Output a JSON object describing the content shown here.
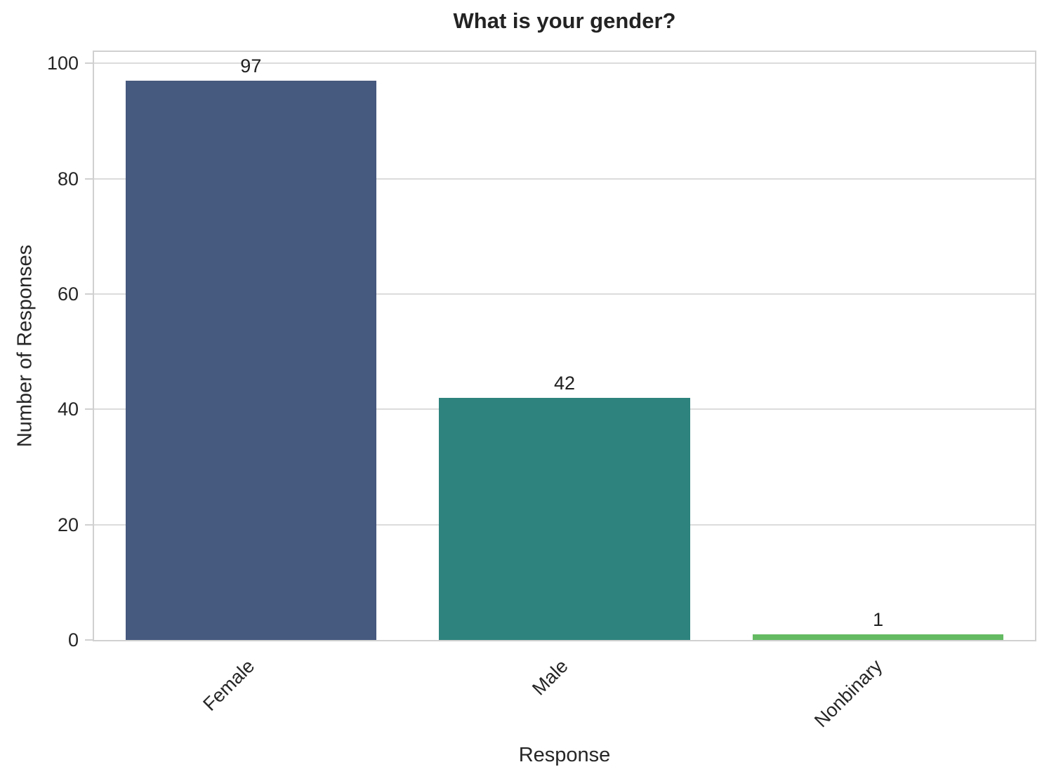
{
  "chart_data": {
    "type": "bar",
    "title": "What is your gender?",
    "xlabel": "Response",
    "ylabel": "Number of Responses",
    "categories": [
      "Female",
      "Male",
      "Nonbinary"
    ],
    "values": [
      97,
      42,
      1
    ],
    "bar_labels": [
      "97",
      "42",
      "1"
    ],
    "bar_colors": [
      "#46597e",
      "#2e837e",
      "#64ba62"
    ],
    "yticks": [
      0,
      20,
      40,
      60,
      80,
      100
    ],
    "ylim": [
      0,
      102
    ],
    "bar_width_fraction": 0.8,
    "grid": true,
    "legend_position": "none",
    "colors": {
      "grid": "#dcdcdc",
      "spine": "#d0d0d0",
      "text": "#262626",
      "background": "#ffffff"
    }
  }
}
